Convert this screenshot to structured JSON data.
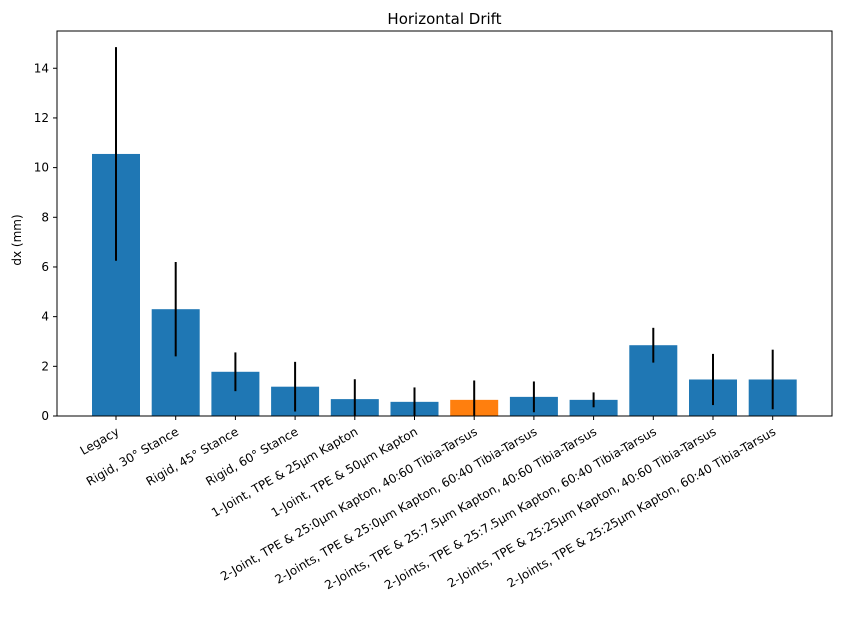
{
  "chart_data": {
    "type": "bar",
    "title": "Horizontal Drift",
    "xlabel": "",
    "ylabel": "dx (mm)",
    "ylim": [
      0,
      15.5
    ],
    "yticks": [
      0,
      2,
      4,
      6,
      8,
      10,
      12,
      14
    ],
    "grid": false,
    "categories": [
      "Legacy",
      "Rigid, 30° Stance",
      "Rigid, 45° Stance",
      "Rigid, 60° Stance",
      "1-Joint, TPE & 25μm Kapton",
      "1-Joint, TPE & 50μm Kapton",
      "2-Joint, TPE & 25:0μm Kapton, 40:60 Tibia-Tarsus",
      "2-Joints, TPE & 25:0μm Kapton, 60:40 Tibia-Tarsus",
      "2-Joints, TPE & 25:7.5μm Kapton, 40:60 Tibia-Tarsus",
      "2-Joints, TPE & 25:7.5μm Kapton, 60:40 Tibia-Tarsus",
      "2-Joints, TPE & 25:25μm Kapton, 40:60 Tibia-Tarsus",
      "2-Joints, TPE & 25:25μm Kapton, 60:40 Tibia-Tarsus"
    ],
    "values": [
      10.55,
      4.3,
      1.78,
      1.18,
      0.68,
      0.57,
      0.65,
      0.77,
      0.65,
      2.85,
      1.47,
      1.47
    ],
    "errors": [
      4.3,
      1.9,
      0.78,
      1.0,
      0.8,
      0.58,
      0.78,
      0.62,
      0.3,
      0.7,
      1.03,
      1.2
    ],
    "colors": [
      "#1f77b4",
      "#1f77b4",
      "#1f77b4",
      "#1f77b4",
      "#1f77b4",
      "#1f77b4",
      "#ff7f0e",
      "#1f77b4",
      "#1f77b4",
      "#1f77b4",
      "#1f77b4",
      "#1f77b4"
    ],
    "error_color": "#000000"
  }
}
